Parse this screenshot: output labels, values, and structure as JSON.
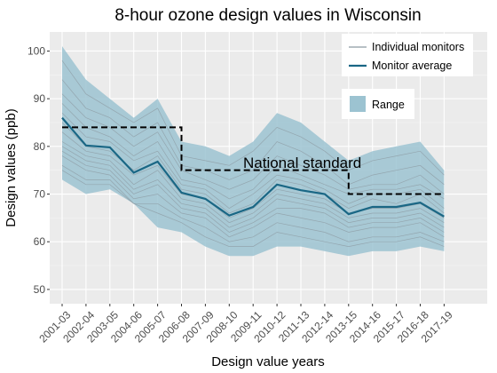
{
  "chart_data": {
    "type": "line",
    "title": "8-hour ozone design values in Wisconsin",
    "xlabel": "Design value years",
    "ylabel": "Design values (ppb)",
    "categories": [
      "2001-03",
      "2002-04",
      "2003-05",
      "2004-06",
      "2005-07",
      "2006-08",
      "2007-09",
      "2008-10",
      "2009-11",
      "2010-12",
      "2011-13",
      "2012-14",
      "2013-15",
      "2014-16",
      "2015-17",
      "2016-18",
      "2017-19"
    ],
    "ylim": [
      47,
      104
    ],
    "yticks": [
      50,
      60,
      70,
      80,
      90,
      100
    ],
    "grid": true,
    "legend_position": "top-right",
    "range": {
      "name": "Range",
      "min": [
        73,
        70,
        71,
        68,
        63,
        62,
        59,
        57,
        57,
        59,
        59,
        58,
        57,
        58,
        58,
        59,
        58
      ],
      "max": [
        101,
        94,
        90,
        86,
        90,
        81,
        80,
        78,
        81,
        87,
        85,
        81,
        77,
        79,
        80,
        81,
        75
      ],
      "color": "#9cc3d1"
    },
    "average": {
      "name": "Monitor average",
      "values": [
        86,
        80.2,
        79.8,
        74.5,
        76.8,
        70.3,
        69,
        65.5,
        67.3,
        72,
        70.8,
        70,
        65.8,
        67.3,
        67.3,
        68.2,
        65.3
      ],
      "color": "#1a6785"
    },
    "individual": {
      "name": "Individual monitors",
      "color": "#8c9aa2",
      "lines": [
        [
          98,
          91,
          88,
          85,
          88,
          78,
          77,
          76,
          79,
          84,
          82,
          79,
          75,
          77,
          78,
          79,
          74
        ],
        [
          94,
          88,
          86,
          82,
          85,
          76,
          75,
          73,
          75,
          81,
          79,
          76,
          72,
          74,
          75,
          76,
          72
        ],
        [
          91,
          86,
          84,
          80,
          83,
          75,
          73,
          71,
          73,
          78,
          76,
          74,
          71,
          72,
          72,
          74,
          70
        ],
        [
          89,
          84,
          82,
          78,
          81,
          73,
          72,
          69,
          71,
          76,
          74,
          72,
          70,
          71,
          71,
          72,
          69
        ],
        [
          87,
          82,
          81,
          77,
          79,
          72,
          71,
          67,
          70,
          74,
          73,
          71,
          68,
          70,
          70,
          71,
          67
        ],
        [
          85,
          80,
          79,
          75,
          78,
          71,
          70,
          66,
          68,
          73,
          72,
          70,
          67,
          69,
          68,
          70,
          66
        ],
        [
          83,
          79,
          78,
          74,
          76,
          70,
          69,
          65,
          67,
          71,
          70,
          69,
          66,
          67,
          67,
          68,
          65
        ],
        [
          81,
          78,
          77,
          72,
          75,
          69,
          68,
          64,
          66,
          70,
          69,
          68,
          65,
          66,
          66,
          67,
          64
        ],
        [
          80,
          77,
          76,
          71,
          73,
          68,
          67,
          63,
          65,
          69,
          68,
          67,
          64,
          65,
          65,
          66,
          63
        ],
        [
          79,
          76,
          75,
          70,
          72,
          67,
          66,
          62,
          64,
          67,
          67,
          66,
          63,
          64,
          64,
          65,
          62
        ],
        [
          78,
          75,
          74,
          69,
          70,
          66,
          65,
          61,
          63,
          66,
          65,
          64,
          62,
          63,
          63,
          64,
          61
        ],
        [
          76,
          73,
          73,
          68,
          68,
          65,
          63,
          60,
          61,
          64,
          63,
          62,
          60,
          61,
          61,
          62,
          60
        ],
        [
          75,
          72,
          72,
          68,
          66,
          64,
          61,
          59,
          59,
          62,
          61,
          60,
          59,
          60,
          60,
          61,
          59
        ]
      ]
    },
    "standard": {
      "name": "National standard",
      "segments": [
        {
          "from": 0,
          "to": 5,
          "value": 84
        },
        {
          "from": 5,
          "to": 12,
          "value": 75
        },
        {
          "from": 12,
          "to": 16,
          "value": 70
        }
      ],
      "color": "#000000"
    },
    "legend": [
      "Individual monitors",
      "Monitor average",
      "Range"
    ]
  }
}
